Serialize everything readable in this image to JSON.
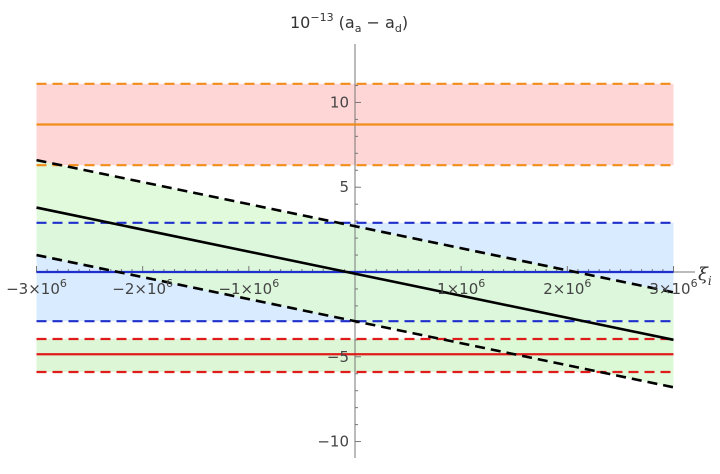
{
  "chart_data": {
    "type": "line",
    "title": "",
    "xlabel": "ξ",
    "xlabel_subscript": "i",
    "ylabel_prefix": "10",
    "ylabel_exponent": "−13",
    "ylabel_body": " (a",
    "ylabel_sub1": "a",
    "ylabel_mid": " − a",
    "ylabel_sub2": "d",
    "ylabel_suffix": ")",
    "xlim": [
      -3000000,
      3000000
    ],
    "ylim": [
      -10,
      12
    ],
    "x_ticks": [
      {
        "value": -3000000,
        "label": "−3×10",
        "exp": "6"
      },
      {
        "value": -2000000,
        "label": "−2×10",
        "exp": "6"
      },
      {
        "value": -1000000,
        "label": "−1×10",
        "exp": "6"
      },
      {
        "value": 1000000,
        "label": "1×10",
        "exp": "6"
      },
      {
        "value": 2000000,
        "label": "2×10",
        "exp": "6"
      },
      {
        "value": 3000000,
        "label": "3×10",
        "exp": "6"
      }
    ],
    "y_ticks": [
      {
        "value": -10,
        "label": "−10"
      },
      {
        "value": -5,
        "label": "−5"
      },
      {
        "value": 5,
        "label": "5"
      },
      {
        "value": 10,
        "label": "10"
      }
    ],
    "bands": [
      {
        "name": "orange",
        "y": 8.7,
        "y_low": 6.3,
        "y_high": 11.1,
        "line_color": "#f28c1a",
        "fill_color": "#ffd6d6"
      },
      {
        "name": "blue",
        "y": 0,
        "y_low": -2.9,
        "y_high": 2.9,
        "line_color": "#1f2fcc",
        "fill_color": "#d9ebff"
      },
      {
        "name": "red",
        "y": -4.85,
        "y_low": -5.9,
        "y_high": -3.95,
        "line_color": "#e01b1b",
        "fill_color": "#ddf7d6"
      }
    ],
    "trend": {
      "name": "black",
      "color": "#000000",
      "fill_color": "#dcf9d6",
      "x": [
        -3000000,
        3000000
      ],
      "y": [
        3.8,
        -4.0
      ],
      "y_low": [
        1.0,
        -6.8
      ],
      "y_high": [
        6.6,
        -1.2
      ]
    }
  }
}
